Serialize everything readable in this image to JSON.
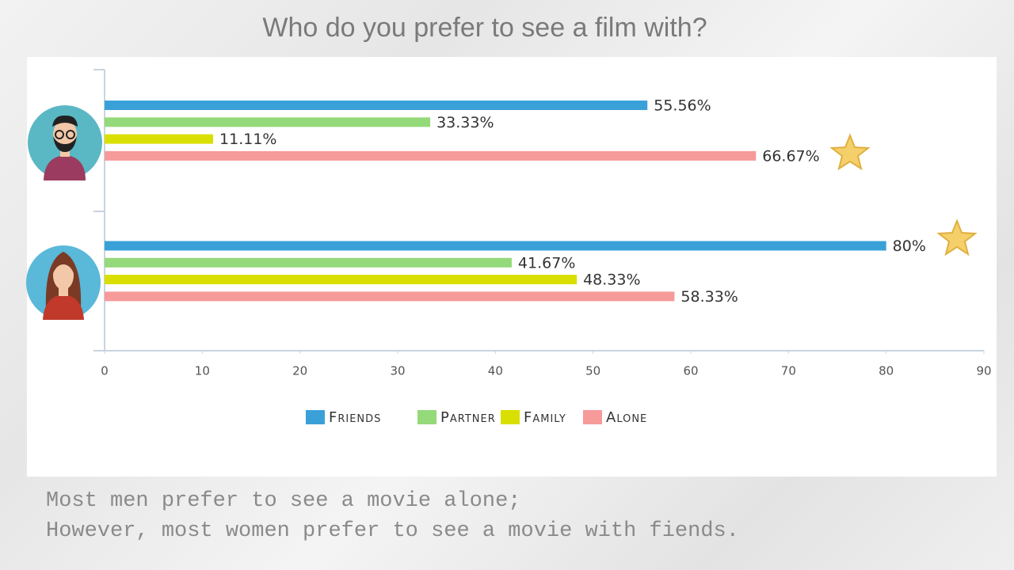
{
  "title": "Who do you prefer to see a film with?",
  "chart_data": {
    "type": "hbar",
    "categories": [
      null,
      null
    ],
    "series": [
      {
        "name": "Friends",
        "color": "#3aa1d8",
        "values": [
          55.56,
          80
        ],
        "value_labels": [
          "55.56%",
          "80%"
        ]
      },
      {
        "name": "Partner",
        "color": "#94d97a",
        "values": [
          33.33,
          41.67
        ],
        "value_labels": [
          "33.33%",
          "41.67%"
        ]
      },
      {
        "name": "Family",
        "color": "#d9df00",
        "values": [
          11.11,
          48.33
        ],
        "value_labels": [
          "11.11%",
          "48.33%"
        ]
      },
      {
        "name": "Alone",
        "color": "#f79a9a",
        "values": [
          66.67,
          58.33
        ],
        "value_labels": [
          "66.67%",
          "58.33%"
        ]
      }
    ],
    "xlim": [
      0,
      90
    ],
    "xticks": [
      0,
      10,
      20,
      30,
      40,
      50,
      60,
      70,
      80,
      90
    ],
    "legend": "bottom"
  },
  "notes": [
    "Most men prefer to see a movie alone;",
    "However, most women prefer to see a movie with fiends."
  ]
}
